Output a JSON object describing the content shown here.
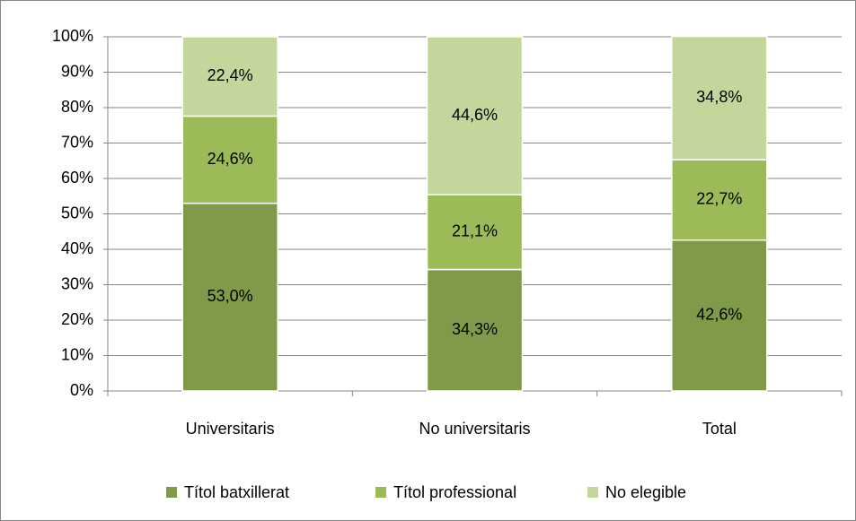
{
  "chart_data": {
    "type": "stacked_bar",
    "categories": [
      "Universitaris",
      "No universitaris",
      "Total"
    ],
    "series": [
      {
        "name": "Títol batxillerat",
        "color": "#7f9a48",
        "values": [
          53.0,
          34.3,
          42.6
        ],
        "value_labels": [
          "53,0%",
          "34,3%",
          "42,6%"
        ]
      },
      {
        "name": "Títol professional",
        "color": "#9bbb59",
        "values": [
          24.6,
          21.1,
          22.7
        ],
        "value_labels": [
          "24,6%",
          "21,1%",
          "22,7%"
        ]
      },
      {
        "name": "No elegible",
        "color": "#c3d69b",
        "values": [
          22.4,
          44.6,
          34.8
        ],
        "value_labels": [
          "22,4%",
          "44,6%",
          "34,8%"
        ]
      }
    ],
    "ylim": [
      0,
      100
    ],
    "yticks": [
      {
        "value": 0,
        "label": "0%"
      },
      {
        "value": 10,
        "label": "10%"
      },
      {
        "value": 20,
        "label": "20%"
      },
      {
        "value": 30,
        "label": "30%"
      },
      {
        "value": 40,
        "label": "40%"
      },
      {
        "value": 50,
        "label": "50%"
      },
      {
        "value": 60,
        "label": "60%"
      },
      {
        "value": 70,
        "label": "70%"
      },
      {
        "value": 80,
        "label": "80%"
      },
      {
        "value": 90,
        "label": "90%"
      },
      {
        "value": 100,
        "label": "100%"
      }
    ],
    "grid": true,
    "legend": "bottom"
  }
}
